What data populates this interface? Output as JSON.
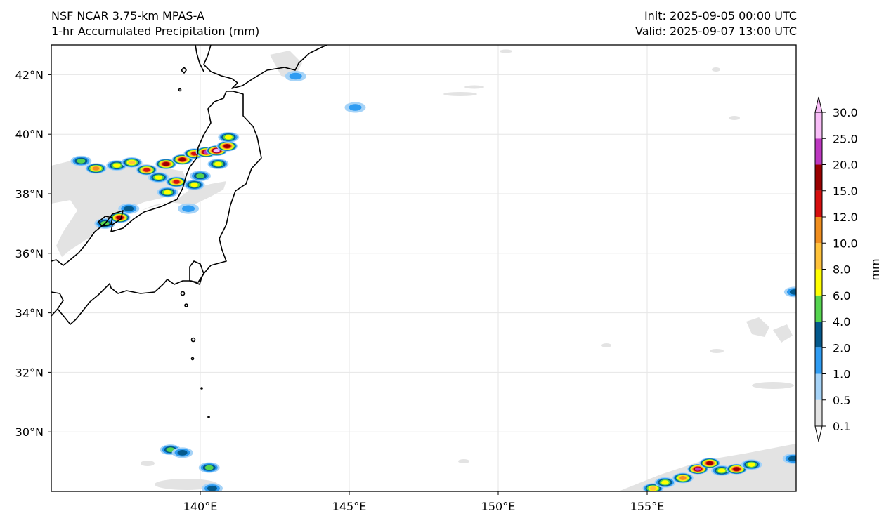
{
  "header": {
    "model": "NSF NCAR 3.75-km MPAS-A",
    "field": "1-hr Accumulated Precipitation (mm)",
    "init": "Init: 2025-09-05 00:00 UTC",
    "valid": "Valid: 2025-09-07 13:00 UTC"
  },
  "map": {
    "extent": {
      "lon_min": 135,
      "lon_max": 160,
      "lat_min": 28,
      "lat_max": 43
    },
    "lat_ticks": [
      {
        "value": 42,
        "label": "42°N"
      },
      {
        "value": 40,
        "label": "40°N"
      },
      {
        "value": 38,
        "label": "38°N"
      },
      {
        "value": 36,
        "label": "36°N"
      },
      {
        "value": 34,
        "label": "34°N"
      },
      {
        "value": 32,
        "label": "32°N"
      },
      {
        "value": 30,
        "label": "30°N"
      }
    ],
    "lon_ticks": [
      {
        "value": 140,
        "label": "140°E"
      },
      {
        "value": 145,
        "label": "145°E"
      },
      {
        "value": 150,
        "label": "150°E"
      },
      {
        "value": 155,
        "label": "155°E"
      }
    ]
  },
  "colorbar": {
    "label": "mm",
    "levels": [
      "0.1",
      "0.5",
      "1.0",
      "2.0",
      "4.0",
      "6.0",
      "8.0",
      "10.0",
      "12.0",
      "15.0",
      "20.0",
      "25.0",
      "30.0"
    ],
    "colors": [
      "#e3e3e3",
      "#a6d3f7",
      "#2f9cf2",
      "#04598c",
      "#55d44f",
      "#ffff00",
      "#ffc23a",
      "#f08e1e",
      "#d60f0f",
      "#9a0000",
      "#bd37c0",
      "#f8bdf7"
    ]
  },
  "colors": {
    "coastline": "#000000",
    "gridline": "#e6e6e6",
    "frame": "#000000"
  },
  "precip_cells": [
    {
      "lon": 136.8,
      "lat": 37.0,
      "level": 4
    },
    {
      "lon": 137.3,
      "lat": 37.2,
      "level": 9
    },
    {
      "lon": 137.6,
      "lat": 37.5,
      "level": 3
    },
    {
      "lon": 136.0,
      "lat": 39.1,
      "level": 4
    },
    {
      "lon": 136.5,
      "lat": 38.85,
      "level": 7
    },
    {
      "lon": 137.2,
      "lat": 38.95,
      "level": 5
    },
    {
      "lon": 137.7,
      "lat": 39.05,
      "level": 6
    },
    {
      "lon": 138.2,
      "lat": 38.8,
      "level": 8
    },
    {
      "lon": 138.6,
      "lat": 38.55,
      "level": 5
    },
    {
      "lon": 138.85,
      "lat": 39.0,
      "level": 9
    },
    {
      "lon": 139.2,
      "lat": 38.4,
      "level": 8
    },
    {
      "lon": 139.4,
      "lat": 39.15,
      "level": 9
    },
    {
      "lon": 139.8,
      "lat": 39.35,
      "level": 8
    },
    {
      "lon": 140.2,
      "lat": 39.4,
      "level": 10
    },
    {
      "lon": 140.55,
      "lat": 39.45,
      "level": 11
    },
    {
      "lon": 140.9,
      "lat": 39.6,
      "level": 9
    },
    {
      "lon": 140.95,
      "lat": 39.9,
      "level": 5
    },
    {
      "lon": 140.6,
      "lat": 39.0,
      "level": 5
    },
    {
      "lon": 139.8,
      "lat": 38.3,
      "level": 5
    },
    {
      "lon": 140.0,
      "lat": 38.6,
      "level": 4
    },
    {
      "lon": 139.6,
      "lat": 37.5,
      "level": 2
    },
    {
      "lon": 138.9,
      "lat": 38.05,
      "level": 5
    },
    {
      "lon": 145.2,
      "lat": 40.9,
      "level": 2
    },
    {
      "lon": 143.2,
      "lat": 41.95,
      "level": 2
    },
    {
      "lon": 159.95,
      "lat": 34.7,
      "level": 3
    },
    {
      "lon": 139.0,
      "lat": 29.4,
      "level": 4
    },
    {
      "lon": 139.4,
      "lat": 29.3,
      "level": 3
    },
    {
      "lon": 140.3,
      "lat": 28.8,
      "level": 4
    },
    {
      "lon": 140.4,
      "lat": 28.1,
      "level": 3
    },
    {
      "lon": 155.2,
      "lat": 28.1,
      "level": 6
    },
    {
      "lon": 155.6,
      "lat": 28.3,
      "level": 5
    },
    {
      "lon": 156.2,
      "lat": 28.45,
      "level": 7
    },
    {
      "lon": 156.7,
      "lat": 28.75,
      "level": 10
    },
    {
      "lon": 157.1,
      "lat": 28.95,
      "level": 9
    },
    {
      "lon": 157.5,
      "lat": 28.7,
      "level": 5
    },
    {
      "lon": 158.0,
      "lat": 28.75,
      "level": 9
    },
    {
      "lon": 158.5,
      "lat": 28.9,
      "level": 5
    },
    {
      "lon": 159.9,
      "lat": 29.1,
      "level": 3
    }
  ]
}
